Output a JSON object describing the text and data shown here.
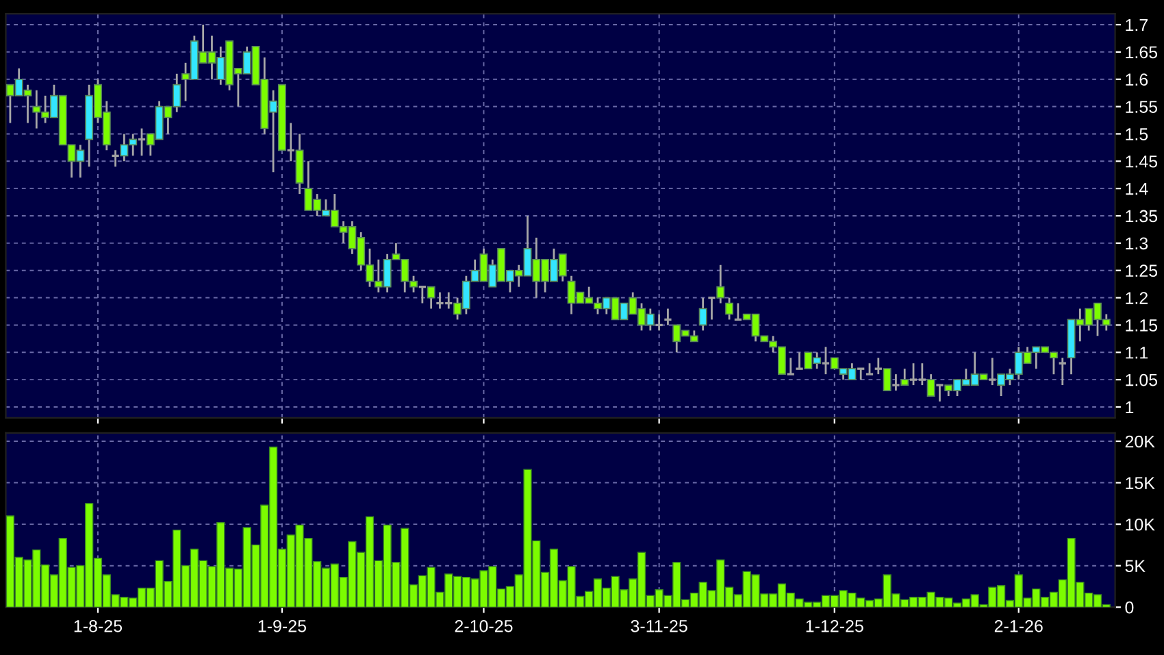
{
  "chart_data": [
    {
      "type": "candlestick",
      "categories": [
        null,
        null,
        null,
        null,
        null,
        null,
        null,
        null,
        null,
        null,
        null,
        null,
        null,
        null,
        null,
        null,
        null,
        null,
        null,
        null,
        null,
        null,
        null,
        null,
        null,
        null,
        null,
        null,
        null,
        null,
        null,
        null,
        null,
        null,
        null,
        null,
        null,
        null,
        null,
        null,
        null,
        null,
        null,
        null,
        null,
        null,
        null,
        null,
        null,
        null,
        null,
        null,
        null,
        null,
        null,
        null,
        null,
        null,
        null,
        null,
        null,
        null,
        null,
        null,
        null,
        null,
        null,
        null,
        null,
        null,
        null,
        null,
        null,
        null,
        null,
        null,
        null,
        null,
        null,
        null,
        null,
        null,
        null,
        null,
        null,
        null,
        null,
        null,
        null,
        null,
        null,
        null,
        null,
        null,
        null,
        null,
        null,
        null,
        null,
        null,
        null,
        null,
        null,
        null,
        null,
        null,
        null,
        null,
        null,
        null,
        null,
        null,
        null,
        null,
        null,
        null,
        null,
        null,
        null,
        null,
        null,
        null,
        null,
        null,
        null,
        null
      ],
      "ohlc": [
        [
          1.59,
          1.59,
          1.52,
          1.57
        ],
        [
          1.57,
          1.62,
          1.57,
          1.6
        ],
        [
          1.58,
          1.59,
          1.52,
          1.57
        ],
        [
          1.55,
          1.58,
          1.51,
          1.54
        ],
        [
          1.54,
          1.57,
          1.52,
          1.53
        ],
        [
          1.53,
          1.59,
          1.53,
          1.57
        ],
        [
          1.57,
          1.57,
          1.48,
          1.48
        ],
        [
          1.48,
          1.48,
          1.42,
          1.45
        ],
        [
          1.45,
          1.48,
          1.42,
          1.47
        ],
        [
          1.49,
          1.59,
          1.44,
          1.57
        ],
        [
          1.59,
          1.6,
          1.52,
          1.53
        ],
        [
          1.54,
          1.56,
          1.47,
          1.48
        ],
        [
          1.46,
          1.47,
          1.44,
          1.46
        ],
        [
          1.46,
          1.5,
          1.45,
          1.48
        ],
        [
          1.48,
          1.5,
          1.46,
          1.49
        ],
        [
          1.49,
          1.51,
          1.46,
          1.49
        ],
        [
          1.5,
          1.5,
          1.46,
          1.48
        ],
        [
          1.49,
          1.56,
          1.49,
          1.55
        ],
        [
          1.55,
          1.55,
          1.5,
          1.53
        ],
        [
          1.55,
          1.61,
          1.54,
          1.59
        ],
        [
          1.61,
          1.63,
          1.56,
          1.6
        ],
        [
          1.6,
          1.68,
          1.6,
          1.67
        ],
        [
          1.65,
          1.7,
          1.63,
          1.63
        ],
        [
          1.65,
          1.68,
          1.6,
          1.63
        ],
        [
          1.6,
          1.66,
          1.59,
          1.64
        ],
        [
          1.67,
          1.67,
          1.58,
          1.59
        ],
        [
          1.62,
          1.62,
          1.55,
          1.61
        ],
        [
          1.61,
          1.66,
          1.61,
          1.65
        ],
        [
          1.66,
          1.66,
          1.59,
          1.59
        ],
        [
          1.6,
          1.64,
          1.5,
          1.51
        ],
        [
          1.54,
          1.58,
          1.43,
          1.56
        ],
        [
          1.59,
          1.59,
          1.47,
          1.47
        ],
        [
          1.47,
          1.52,
          1.45,
          1.47
        ],
        [
          1.47,
          1.5,
          1.39,
          1.41
        ],
        [
          1.4,
          1.45,
          1.36,
          1.36
        ],
        [
          1.38,
          1.39,
          1.35,
          1.36
        ],
        [
          1.35,
          1.38,
          1.35,
          1.36
        ],
        [
          1.36,
          1.39,
          1.33,
          1.33
        ],
        [
          1.33,
          1.34,
          1.3,
          1.32
        ],
        [
          1.33,
          1.34,
          1.28,
          1.29
        ],
        [
          1.31,
          1.32,
          1.25,
          1.26
        ],
        [
          1.26,
          1.29,
          1.22,
          1.23
        ],
        [
          1.23,
          1.27,
          1.21,
          1.22
        ],
        [
          1.22,
          1.28,
          1.21,
          1.27
        ],
        [
          1.28,
          1.3,
          1.27,
          1.27
        ],
        [
          1.27,
          1.27,
          1.21,
          1.23
        ],
        [
          1.23,
          1.24,
          1.21,
          1.22
        ],
        [
          1.22,
          1.22,
          1.19,
          1.22
        ],
        [
          1.22,
          1.22,
          1.18,
          1.2
        ],
        [
          1.19,
          1.21,
          1.18,
          1.19
        ],
        [
          1.19,
          1.21,
          1.18,
          1.19
        ],
        [
          1.19,
          1.2,
          1.16,
          1.17
        ],
        [
          1.18,
          1.24,
          1.17,
          1.23
        ],
        [
          1.23,
          1.27,
          1.23,
          1.25
        ],
        [
          1.28,
          1.29,
          1.23,
          1.23
        ],
        [
          1.22,
          1.27,
          1.22,
          1.26
        ],
        [
          1.29,
          1.29,
          1.23,
          1.23
        ],
        [
          1.23,
          1.25,
          1.21,
          1.25
        ],
        [
          1.25,
          1.26,
          1.22,
          1.24
        ],
        [
          1.24,
          1.35,
          1.24,
          1.29
        ],
        [
          1.27,
          1.31,
          1.2,
          1.23
        ],
        [
          1.27,
          1.27,
          1.21,
          1.23
        ],
        [
          1.23,
          1.29,
          1.23,
          1.27
        ],
        [
          1.28,
          1.28,
          1.23,
          1.24
        ],
        [
          1.23,
          1.24,
          1.17,
          1.19
        ],
        [
          1.21,
          1.21,
          1.19,
          1.19
        ],
        [
          1.2,
          1.22,
          1.19,
          1.19
        ],
        [
          1.19,
          1.2,
          1.17,
          1.18
        ],
        [
          1.18,
          1.2,
          1.17,
          1.2
        ],
        [
          1.2,
          1.2,
          1.16,
          1.16
        ],
        [
          1.16,
          1.19,
          1.16,
          1.19
        ],
        [
          1.2,
          1.21,
          1.17,
          1.17
        ],
        [
          1.18,
          1.19,
          1.14,
          1.15
        ],
        [
          1.15,
          1.18,
          1.14,
          1.17
        ],
        [
          1.15,
          1.17,
          1.14,
          1.15
        ],
        [
          1.16,
          1.18,
          1.15,
          1.16
        ],
        [
          1.15,
          1.15,
          1.1,
          1.12
        ],
        [
          1.14,
          1.14,
          1.13,
          1.13
        ],
        [
          1.13,
          1.14,
          1.12,
          1.12
        ],
        [
          1.15,
          1.2,
          1.14,
          1.18
        ],
        [
          1.2,
          1.2,
          1.16,
          1.2
        ],
        [
          1.22,
          1.26,
          1.19,
          1.2
        ],
        [
          1.19,
          1.2,
          1.16,
          1.17
        ],
        [
          1.16,
          1.19,
          1.16,
          1.16
        ],
        [
          1.17,
          1.17,
          1.16,
          1.16
        ],
        [
          1.17,
          1.17,
          1.12,
          1.13
        ],
        [
          1.13,
          1.13,
          1.12,
          1.12
        ],
        [
          1.12,
          1.13,
          1.1,
          1.11
        ],
        [
          1.11,
          1.11,
          1.06,
          1.06
        ],
        [
          1.06,
          1.09,
          1.06,
          1.06
        ],
        [
          1.07,
          1.1,
          1.07,
          1.07
        ],
        [
          1.1,
          1.1,
          1.07,
          1.07
        ],
        [
          1.08,
          1.1,
          1.07,
          1.09
        ],
        [
          1.08,
          1.11,
          1.06,
          1.08
        ],
        [
          1.09,
          1.09,
          1.07,
          1.07
        ],
        [
          1.06,
          1.07,
          1.05,
          1.07
        ],
        [
          1.05,
          1.08,
          1.05,
          1.07
        ],
        [
          1.07,
          1.07,
          1.05,
          1.07
        ],
        [
          1.06,
          1.08,
          1.06,
          1.06
        ],
        [
          1.07,
          1.09,
          1.06,
          1.07
        ],
        [
          1.07,
          1.07,
          1.03,
          1.03
        ],
        [
          1.04,
          1.06,
          1.03,
          1.04
        ],
        [
          1.05,
          1.07,
          1.04,
          1.04
        ],
        [
          1.05,
          1.08,
          1.04,
          1.05
        ],
        [
          1.05,
          1.08,
          1.04,
          1.05
        ],
        [
          1.05,
          1.06,
          1.02,
          1.02
        ],
        [
          1.04,
          1.04,
          1.01,
          1.04
        ],
        [
          1.04,
          1.04,
          1.02,
          1.03
        ],
        [
          1.03,
          1.05,
          1.02,
          1.05
        ],
        [
          1.04,
          1.07,
          1.04,
          1.05
        ],
        [
          1.04,
          1.1,
          1.04,
          1.06
        ],
        [
          1.06,
          1.06,
          1.05,
          1.05
        ],
        [
          1.05,
          1.09,
          1.04,
          1.05
        ],
        [
          1.04,
          1.06,
          1.02,
          1.06
        ],
        [
          1.05,
          1.07,
          1.04,
          1.06
        ],
        [
          1.06,
          1.11,
          1.05,
          1.1
        ],
        [
          1.1,
          1.11,
          1.08,
          1.08
        ],
        [
          1.1,
          1.11,
          1.07,
          1.11
        ],
        [
          1.11,
          1.11,
          1.1,
          1.1
        ],
        [
          1.1,
          1.1,
          1.06,
          1.09
        ],
        [
          1.08,
          1.09,
          1.04,
          1.08
        ],
        [
          1.09,
          1.16,
          1.06,
          1.16
        ],
        [
          1.16,
          1.18,
          1.12,
          1.15
        ],
        [
          1.18,
          1.18,
          1.14,
          1.15
        ],
        [
          1.19,
          1.19,
          1.13,
          1.16
        ],
        [
          1.16,
          1.17,
          1.14,
          1.15
        ]
      ],
      "colors": [
        "#7cfc00",
        "#33e6ff",
        "#7cfc00",
        "#7cfc00",
        "#7cfc00",
        "#33e6ff",
        "#7cfc00",
        "#7cfc00",
        "#33e6ff",
        "#33e6ff",
        "#7cfc00",
        "#7cfc00",
        "#a0a0a0",
        "#33e6ff",
        "#33e6ff",
        "#a0a0a0",
        "#7cfc00",
        "#33e6ff",
        "#7cfc00",
        "#33e6ff",
        "#7cfc00",
        "#33e6ff",
        "#7cfc00",
        "#7cfc00",
        "#33e6ff",
        "#7cfc00",
        "#7cfc00",
        "#33e6ff",
        "#7cfc00",
        "#7cfc00",
        "#33e6ff",
        "#7cfc00",
        "#a0a0a0",
        "#7cfc00",
        "#7cfc00",
        "#7cfc00",
        "#33e6ff",
        "#7cfc00",
        "#7cfc00",
        "#7cfc00",
        "#7cfc00",
        "#7cfc00",
        "#7cfc00",
        "#33e6ff",
        "#7cfc00",
        "#7cfc00",
        "#7cfc00",
        "#a0a0a0",
        "#7cfc00",
        "#a0a0a0",
        "#a0a0a0",
        "#7cfc00",
        "#33e6ff",
        "#33e6ff",
        "#7cfc00",
        "#33e6ff",
        "#7cfc00",
        "#33e6ff",
        "#7cfc00",
        "#33e6ff",
        "#7cfc00",
        "#7cfc00",
        "#33e6ff",
        "#7cfc00",
        "#7cfc00",
        "#7cfc00",
        "#7cfc00",
        "#7cfc00",
        "#33e6ff",
        "#7cfc00",
        "#33e6ff",
        "#7cfc00",
        "#7cfc00",
        "#33e6ff",
        "#a0a0a0",
        "#a0a0a0",
        "#7cfc00",
        "#7cfc00",
        "#7cfc00",
        "#33e6ff",
        "#a0a0a0",
        "#7cfc00",
        "#7cfc00",
        "#a0a0a0",
        "#7cfc00",
        "#7cfc00",
        "#7cfc00",
        "#7cfc00",
        "#7cfc00",
        "#a0a0a0",
        "#a0a0a0",
        "#7cfc00",
        "#33e6ff",
        "#a0a0a0",
        "#7cfc00",
        "#33e6ff",
        "#33e6ff",
        "#a0a0a0",
        "#a0a0a0",
        "#a0a0a0",
        "#7cfc00",
        "#a0a0a0",
        "#7cfc00",
        "#a0a0a0",
        "#a0a0a0",
        "#7cfc00",
        "#a0a0a0",
        "#7cfc00",
        "#33e6ff",
        "#33e6ff",
        "#33e6ff",
        "#7cfc00",
        "#a0a0a0",
        "#33e6ff",
        "#33e6ff",
        "#33e6ff",
        "#7cfc00",
        "#33e6ff",
        "#7cfc00",
        "#7cfc00",
        "#a0a0a0",
        "#33e6ff",
        "#7cfc00",
        "#7cfc00",
        "#7cfc00",
        "#7cfc00"
      ],
      "ylim": [
        0.98,
        1.72
      ],
      "yticks": [
        1,
        1.05,
        1.1,
        1.15,
        1.2,
        1.25,
        1.3,
        1.35,
        1.4,
        1.45,
        1.5,
        1.55,
        1.6,
        1.65,
        1.7
      ],
      "grid": true,
      "tick_labels": "y"
    },
    {
      "type": "bar",
      "categories": [
        null,
        null,
        null,
        null,
        null,
        null,
        null,
        null,
        null,
        null,
        "1-8-25",
        null,
        null,
        null,
        null,
        null,
        null,
        null,
        null,
        null,
        null,
        null,
        null,
        null,
        null,
        null,
        null,
        null,
        null,
        null,
        null,
        "1-9-25",
        null,
        null,
        null,
        null,
        null,
        null,
        null,
        null,
        null,
        null,
        null,
        null,
        null,
        null,
        null,
        null,
        null,
        null,
        null,
        null,
        null,
        null,
        "2-10-25",
        null,
        null,
        null,
        null,
        null,
        null,
        null,
        null,
        null,
        null,
        null,
        null,
        null,
        null,
        null,
        null,
        null,
        null,
        null,
        "3-11-25",
        null,
        null,
        null,
        null,
        null,
        null,
        null,
        null,
        null,
        null,
        null,
        null,
        null,
        null,
        null,
        null,
        null,
        null,
        null,
        "1-12-25",
        null,
        null,
        null,
        null,
        null,
        null,
        null,
        null,
        null,
        null,
        null,
        null,
        null,
        null,
        null,
        null,
        null,
        null,
        null,
        null,
        "2-1-26",
        null,
        null,
        null,
        null,
        null,
        null,
        null,
        null,
        null,
        null
      ],
      "values": [
        11000,
        6000,
        5700,
        6900,
        5100,
        3900,
        8300,
        4800,
        5000,
        12500,
        5900,
        3900,
        1500,
        1200,
        1100,
        2300,
        2300,
        5600,
        3100,
        9300,
        5000,
        7000,
        5600,
        4900,
        10200,
        4700,
        4600,
        9600,
        7500,
        12300,
        19300,
        7000,
        8700,
        9900,
        8300,
        5500,
        4700,
        5200,
        3600,
        7900,
        6600,
        10900,
        5600,
        9900,
        5400,
        9500,
        2700,
        3800,
        4800,
        1800,
        4000,
        3700,
        3600,
        3400,
        4400,
        4900,
        2200,
        2500,
        3900,
        16600,
        8000,
        4200,
        7000,
        3200,
        4900,
        1300,
        1900,
        3400,
        2300,
        3700,
        2100,
        3400,
        6600,
        1400,
        2100,
        1400,
        5400,
        900,
        1700,
        3000,
        2000,
        5700,
        2400,
        1500,
        4300,
        3900,
        1600,
        1600,
        2800,
        1700,
        1000,
        600,
        600,
        1400,
        1400,
        2000,
        1700,
        1100,
        800,
        1000,
        3900,
        1600,
        900,
        1200,
        1200,
        1800,
        1200,
        1100,
        500,
        1000,
        1500,
        300,
        2400,
        2600,
        800,
        3900,
        1100,
        2200,
        1200,
        1800,
        3300,
        8300,
        3000,
        1700,
        1500,
        300
      ],
      "color": "#7cfc00",
      "ylim": [
        0,
        21000
      ],
      "yticks": [
        0,
        {
          "value": 5000,
          "label": "5K"
        },
        {
          "value": 10000,
          "label": "10K"
        },
        {
          "value": 15000,
          "label": "15K"
        },
        {
          "value": 20000,
          "label": "20K"
        }
      ],
      "grid": true
    }
  ]
}
